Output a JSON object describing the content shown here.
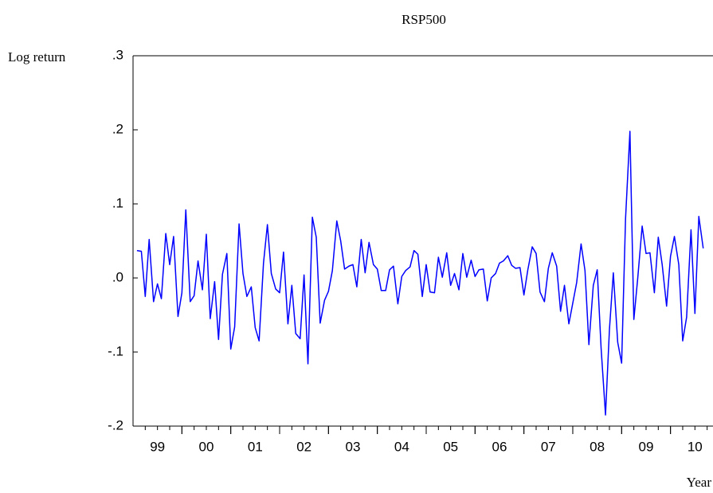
{
  "chart_data": {
    "type": "line",
    "title": "RSP500",
    "y_label": "Log return",
    "x_label": "Year",
    "color": "#0000ff",
    "x": [
      1999.08,
      1999.17,
      1999.25,
      1999.33,
      1999.42,
      1999.5,
      1999.58,
      1999.67,
      1999.75,
      1999.83,
      1999.92,
      2000,
      2000.08,
      2000.17,
      2000.25,
      2000.33,
      2000.42,
      2000.5,
      2000.58,
      2000.67,
      2000.75,
      2000.83,
      2000.92,
      2001,
      2001.08,
      2001.17,
      2001.25,
      2001.33,
      2001.42,
      2001.5,
      2001.58,
      2001.67,
      2001.75,
      2001.83,
      2001.92,
      2002,
      2002.08,
      2002.17,
      2002.25,
      2002.33,
      2002.42,
      2002.5,
      2002.58,
      2002.67,
      2002.75,
      2002.83,
      2002.92,
      2003,
      2003.08,
      2003.17,
      2003.25,
      2003.33,
      2003.42,
      2003.5,
      2003.58,
      2003.67,
      2003.75,
      2003.83,
      2003.92,
      2004,
      2004.08,
      2004.17,
      2004.25,
      2004.33,
      2004.42,
      2004.5,
      2004.58,
      2004.67,
      2004.75,
      2004.83,
      2004.92,
      2005,
      2005.08,
      2005.17,
      2005.25,
      2005.33,
      2005.42,
      2005.5,
      2005.58,
      2005.67,
      2005.75,
      2005.83,
      2005.92,
      2006,
      2006.08,
      2006.17,
      2006.25,
      2006.33,
      2006.42,
      2006.5,
      2006.58,
      2006.67,
      2006.75,
      2006.83,
      2006.92,
      2007,
      2007.08,
      2007.17,
      2007.25,
      2007.33,
      2007.42,
      2007.5,
      2007.58,
      2007.67,
      2007.75,
      2007.83,
      2007.92,
      2008,
      2008.08,
      2008.17,
      2008.25,
      2008.33,
      2008.42,
      2008.5,
      2008.58,
      2008.67,
      2008.75,
      2008.83,
      2008.92,
      2009,
      2009.08,
      2009.17,
      2009.25,
      2009.33,
      2009.42,
      2009.5,
      2009.58,
      2009.67,
      2009.75,
      2009.83,
      2009.92,
      2010,
      2010.08,
      2010.17,
      2010.25,
      2010.33,
      2010.42,
      2010.5,
      2010.58,
      2010.67
    ],
    "values": [
      0.037,
      0.036,
      -0.025,
      0.052,
      -0.032,
      -0.008,
      -0.028,
      0.06,
      0.018,
      0.056,
      -0.052,
      -0.02,
      0.092,
      -0.032,
      -0.024,
      0.023,
      -0.016,
      0.059,
      -0.055,
      -0.005,
      -0.083,
      0.005,
      0.033,
      -0.096,
      -0.066,
      0.073,
      0.006,
      -0.025,
      -0.012,
      -0.067,
      -0.085,
      0.02,
      0.072,
      0.006,
      -0.015,
      -0.02,
      0.035,
      -0.062,
      -0.01,
      -0.075,
      -0.082,
      0.004,
      -0.116,
      0.082,
      0.055,
      -0.061,
      -0.03,
      -0.018,
      0.01,
      0.077,
      0.05,
      0.012,
      0.016,
      0.018,
      -0.012,
      0.052,
      0.007,
      0.048,
      0.018,
      0.012,
      -0.017,
      -0.017,
      0.011,
      0.016,
      -0.035,
      0.002,
      0.01,
      0.015,
      0.037,
      0.032,
      -0.025,
      0.018,
      -0.019,
      -0.02,
      0.028,
      0.001,
      0.034,
      -0.01,
      0.006,
      -0.016,
      0.033,
      0.001,
      0.024,
      0.002,
      0.011,
      0.012,
      -0.031,
      0,
      0.006,
      0.02,
      0.023,
      0.03,
      0.017,
      0.013,
      0.014,
      -0.023,
      0.011,
      0.042,
      0.033,
      -0.019,
      -0.032,
      0.013,
      0.034,
      0.016,
      -0.045,
      -0.01,
      -0.062,
      -0.034,
      -0.006,
      0.046,
      0.01,
      -0.09,
      -0.01,
      0.011,
      -0.095,
      -0.185,
      -0.07,
      0.007,
      -0.087,
      -0.115,
      0.08,
      0.198,
      -0.056,
      0,
      0.07,
      0.033,
      0.034,
      -0.02,
      0.055,
      0.018,
      -0.038,
      0.029,
      0.056,
      0.018,
      -0.085,
      -0.053,
      0.065,
      -0.048,
      0.083,
      0.04
    ],
    "xlim": [
      1999,
      2010.87
    ],
    "xticks": [
      {
        "value": 1999.5,
        "label": "99"
      },
      {
        "value": 2000.5,
        "label": "00"
      },
      {
        "value": 2001.5,
        "label": "01"
      },
      {
        "value": 2002.5,
        "label": "02"
      },
      {
        "value": 2003.5,
        "label": "03"
      },
      {
        "value": 2004.5,
        "label": "04"
      },
      {
        "value": 2005.5,
        "label": "05"
      },
      {
        "value": 2006.5,
        "label": "06"
      },
      {
        "value": 2007.5,
        "label": "07"
      },
      {
        "value": 2008.5,
        "label": "08"
      },
      {
        "value": 2009.5,
        "label": "09"
      },
      {
        "value": 2010.5,
        "label": "10"
      }
    ],
    "ylim": [
      -0.2,
      0.3
    ],
    "yticks": [
      {
        "value": -0.2,
        "label": "-.2"
      },
      {
        "value": -0.1,
        "label": "-.1"
      },
      {
        "value": 0,
        "label": ".0"
      },
      {
        "value": 0.1,
        "label": ".1"
      },
      {
        "value": 0.2,
        "label": ".2"
      },
      {
        "value": 0.3,
        "label": ".3"
      }
    ]
  }
}
